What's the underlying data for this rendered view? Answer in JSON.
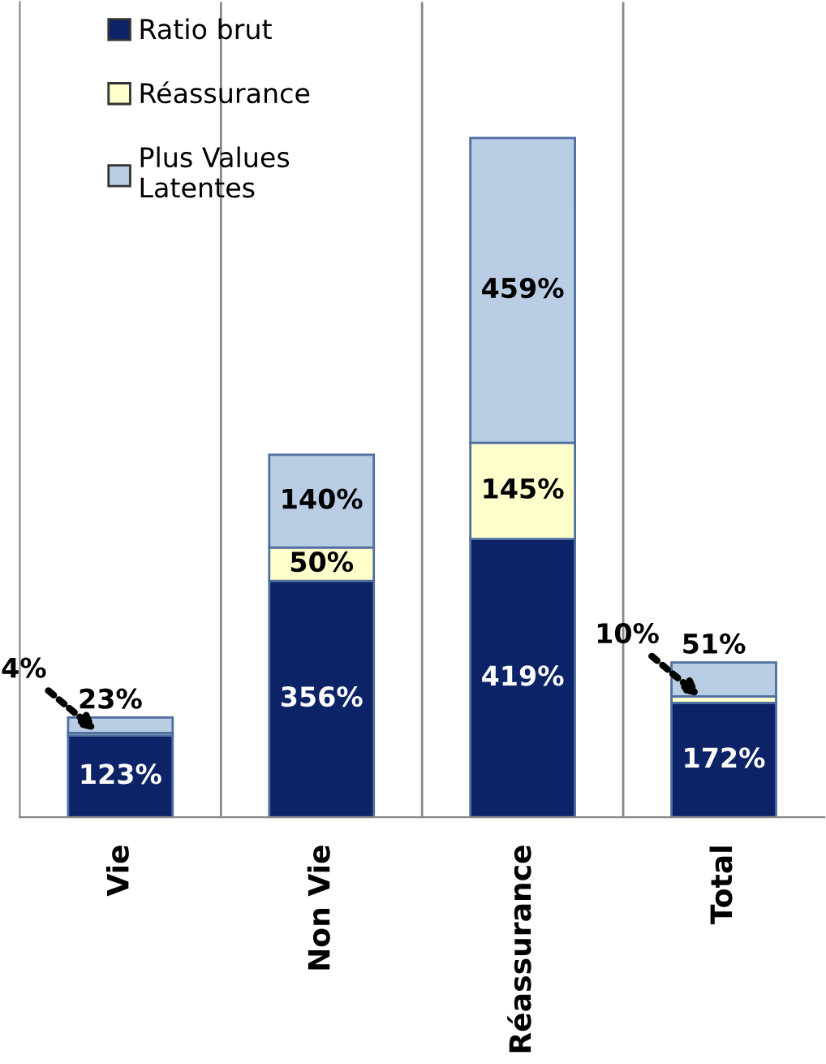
{
  "chart_data": {
    "type": "bar",
    "stacked": true,
    "grid": "x",
    "legend": "top left",
    "categories": [
      "Vie",
      "Non Vie",
      "Réassurance",
      "Total"
    ],
    "series": [
      {
        "name": "Ratio brut",
        "color": "#0c2367",
        "values": [
          123,
          356,
          419,
          172
        ],
        "value_labels": [
          "123%",
          "356%",
          "419%",
          "172%"
        ]
      },
      {
        "name": "Réassurance",
        "color": "#ffffcc",
        "values": [
          4,
          50,
          145,
          10
        ],
        "value_labels": [
          "4%",
          "50%",
          "145%",
          "10%"
        ]
      },
      {
        "name": "Plus Values\nLatentes",
        "color": "#b9cde5",
        "values": [
          23,
          140,
          459,
          51
        ],
        "value_labels": [
          "23%",
          "140%",
          "459%",
          "51%"
        ]
      }
    ]
  }
}
